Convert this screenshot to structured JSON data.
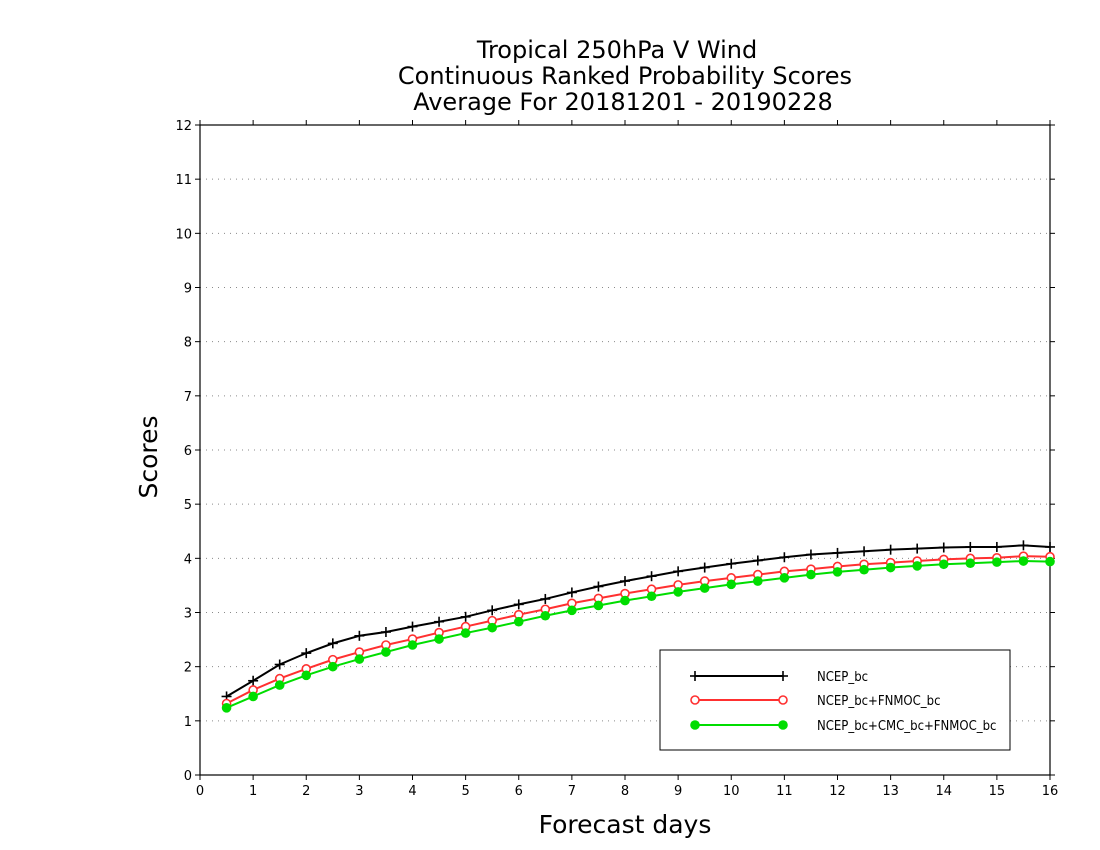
{
  "chart_data": {
    "type": "line",
    "title": [
      "Tropical 250hPa V Wind",
      "Continuous Ranked Probability Scores",
      "Average For 20181201 - 20190228"
    ],
    "xlabel": "Forecast days",
    "ylabel": "Scores",
    "xlim": [
      0,
      16
    ],
    "ylim": [
      0,
      12
    ],
    "xticks": [
      "0",
      "1",
      "2",
      "3",
      "4",
      "5",
      "6",
      "7",
      "8",
      "9",
      "10",
      "11",
      "12",
      "13",
      "14",
      "15",
      "16"
    ],
    "yticks": [
      "0",
      "1",
      "2",
      "3",
      "4",
      "5",
      "6",
      "7",
      "8",
      "9",
      "10",
      "11",
      "12"
    ],
    "grid": "horizontal dotted",
    "legend_position": "bottom-right",
    "x": [
      0.5,
      1,
      1.5,
      2,
      2.5,
      3,
      3.5,
      4,
      4.5,
      5,
      5.5,
      6,
      6.5,
      7,
      7.5,
      8,
      8.5,
      9,
      9.5,
      10,
      10.5,
      11,
      11.5,
      12,
      12.5,
      13,
      13.5,
      14,
      14.5,
      15,
      15.5,
      16
    ],
    "series": [
      {
        "name": "NCEP_bc",
        "color": "#000000",
        "marker": "plus",
        "values": [
          1.45,
          1.74,
          2.04,
          2.25,
          2.43,
          2.57,
          2.64,
          2.74,
          2.83,
          2.92,
          3.04,
          3.15,
          3.25,
          3.37,
          3.48,
          3.58,
          3.67,
          3.76,
          3.83,
          3.9,
          3.96,
          4.02,
          4.07,
          4.1,
          4.13,
          4.16,
          4.18,
          4.2,
          4.21,
          4.21,
          4.24,
          4.21
        ]
      },
      {
        "name": "NCEP_bc+FNMOC_bc",
        "color": "#ff3030",
        "marker": "open-circle",
        "values": [
          1.32,
          1.57,
          1.78,
          1.96,
          2.13,
          2.27,
          2.4,
          2.51,
          2.63,
          2.74,
          2.85,
          2.96,
          3.06,
          3.17,
          3.26,
          3.35,
          3.43,
          3.51,
          3.58,
          3.64,
          3.7,
          3.76,
          3.8,
          3.85,
          3.89,
          3.92,
          3.95,
          3.98,
          4.0,
          4.01,
          4.04,
          4.03
        ]
      },
      {
        "name": "NCEP_bc+CMC_bc+FNMOC_bc",
        "color": "#00dd00",
        "marker": "filled-circle",
        "values": [
          1.24,
          1.45,
          1.66,
          1.84,
          2.0,
          2.14,
          2.27,
          2.4,
          2.51,
          2.62,
          2.72,
          2.83,
          2.94,
          3.04,
          3.13,
          3.22,
          3.3,
          3.38,
          3.45,
          3.52,
          3.58,
          3.64,
          3.7,
          3.75,
          3.79,
          3.83,
          3.86,
          3.89,
          3.91,
          3.93,
          3.95,
          3.94
        ]
      }
    ]
  }
}
